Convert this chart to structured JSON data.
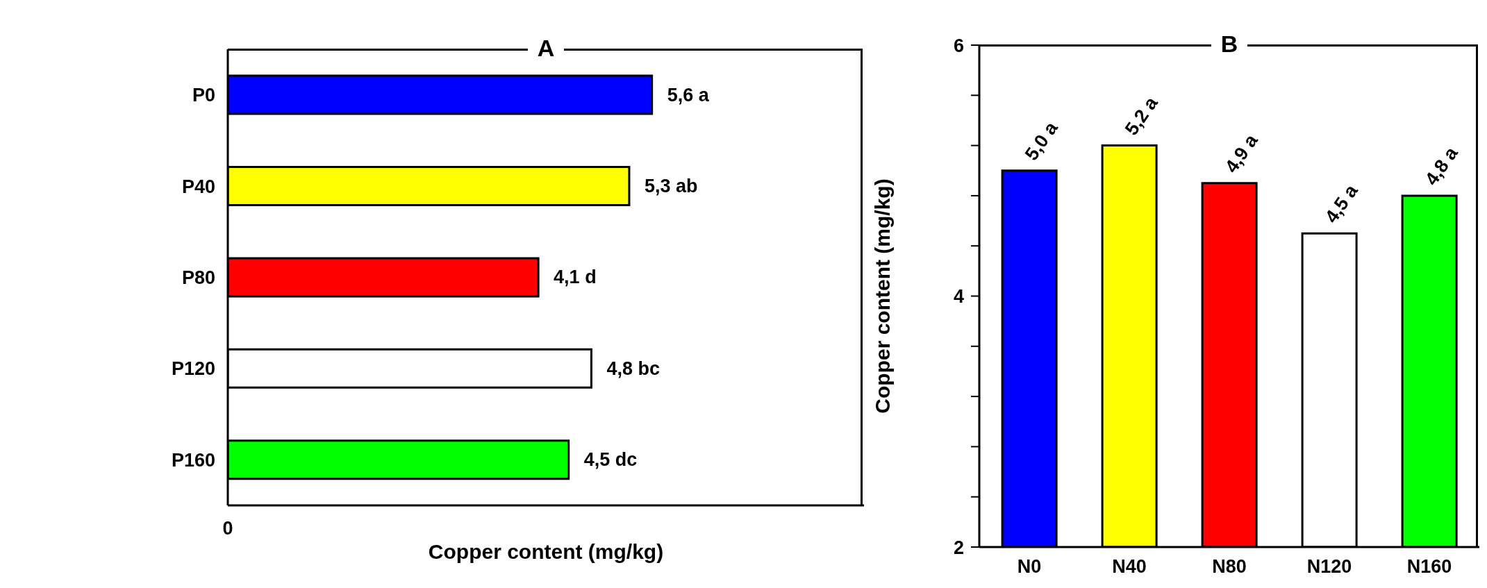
{
  "chart_data": [
    {
      "type": "bar",
      "orientation": "horizontal",
      "title": "A",
      "xlabel": "Copper content (mg/kg)",
      "categories": [
        "P0",
        "P40",
        "P80",
        "P120",
        "P160"
      ],
      "values": [
        5.6,
        5.3,
        4.1,
        4.8,
        4.5
      ],
      "colors": [
        "#0000ff",
        "#ffff00",
        "#ff0000",
        "#ffffff",
        "#00ff00"
      ],
      "value_labels": [
        "5,6 a",
        "5,3 ab",
        "4,1 d",
        "4,8 bc",
        "4,5 dc"
      ],
      "annotations": [
        "0"
      ]
    },
    {
      "type": "bar",
      "title": "B",
      "ylabel": "Copper content (mg/kg)",
      "categories": [
        "N0",
        "N40",
        "N80",
        "N120",
        "N160"
      ],
      "values": [
        5.0,
        5.2,
        4.9,
        4.5,
        4.8
      ],
      "colors": [
        "#0000ff",
        "#ffff00",
        "#ff0000",
        "#ffffff",
        "#00ff00"
      ],
      "value_labels": [
        "5,0 a",
        "5,2 a",
        "4,9 a",
        "4,5 a",
        "4,8 a"
      ],
      "ylim": [
        2,
        6
      ],
      "yticks": [
        2,
        {
          "value": 2.4,
          "label": null
        },
        {
          "value": 2.8,
          "label": null
        },
        {
          "value": 3.2,
          "label": null
        },
        {
          "value": 3.6,
          "label": null
        },
        4,
        {
          "value": 4.4,
          "label": null
        },
        {
          "value": 4.8,
          "label": null
        },
        {
          "value": 5.2,
          "label": null
        },
        {
          "value": 5.6,
          "label": null
        },
        6
      ]
    }
  ]
}
